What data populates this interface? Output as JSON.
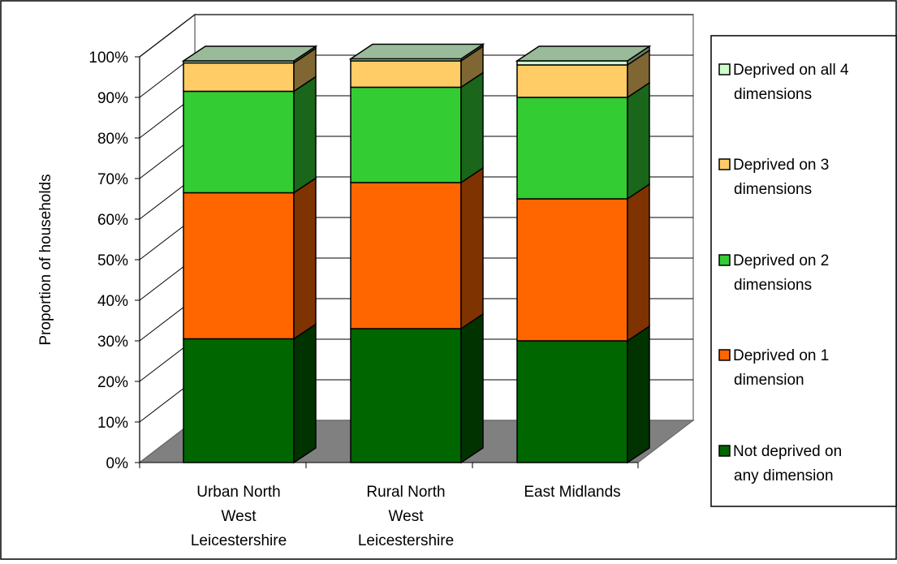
{
  "chart_data": {
    "type": "bar",
    "stacked": true,
    "percent_stacked": true,
    "three_d": true,
    "ylabel": "Proportion of households",
    "xlabel": "",
    "ylim": [
      0,
      100
    ],
    "y_ticks": [
      "0%",
      "10%",
      "20%",
      "30%",
      "40%",
      "50%",
      "60%",
      "70%",
      "80%",
      "90%",
      "100%"
    ],
    "grid": true,
    "legend_position": "right",
    "categories": [
      [
        "Urban North",
        "West",
        "Leicestershire"
      ],
      [
        "Rural North",
        "West",
        "Leicestershire"
      ],
      [
        "East Midlands"
      ]
    ],
    "series": [
      {
        "name": [
          "Not deprived on",
          "any dimension"
        ],
        "values": [
          30.5,
          33,
          30
        ],
        "color": "#006600",
        "side": "#003300"
      },
      {
        "name": [
          "Deprived on 1",
          "dimension"
        ],
        "values": [
          36,
          36,
          35
        ],
        "color": "#FF6600",
        "side": "#7F3300"
      },
      {
        "name": [
          "Deprived on 2",
          "dimensions"
        ],
        "values": [
          25,
          23.5,
          25
        ],
        "color": "#33CC33",
        "side": "#1A661A"
      },
      {
        "name": [
          "Deprived on 3",
          "dimensions"
        ],
        "values": [
          7,
          6.5,
          8
        ],
        "color": "#FFCC66",
        "side": "#7F6633"
      },
      {
        "name": [
          "Deprived on all 4",
          "dimensions"
        ],
        "values": [
          0.5,
          0.5,
          1
        ],
        "color": "#CCFFCC",
        "side": "#667F66"
      }
    ]
  }
}
